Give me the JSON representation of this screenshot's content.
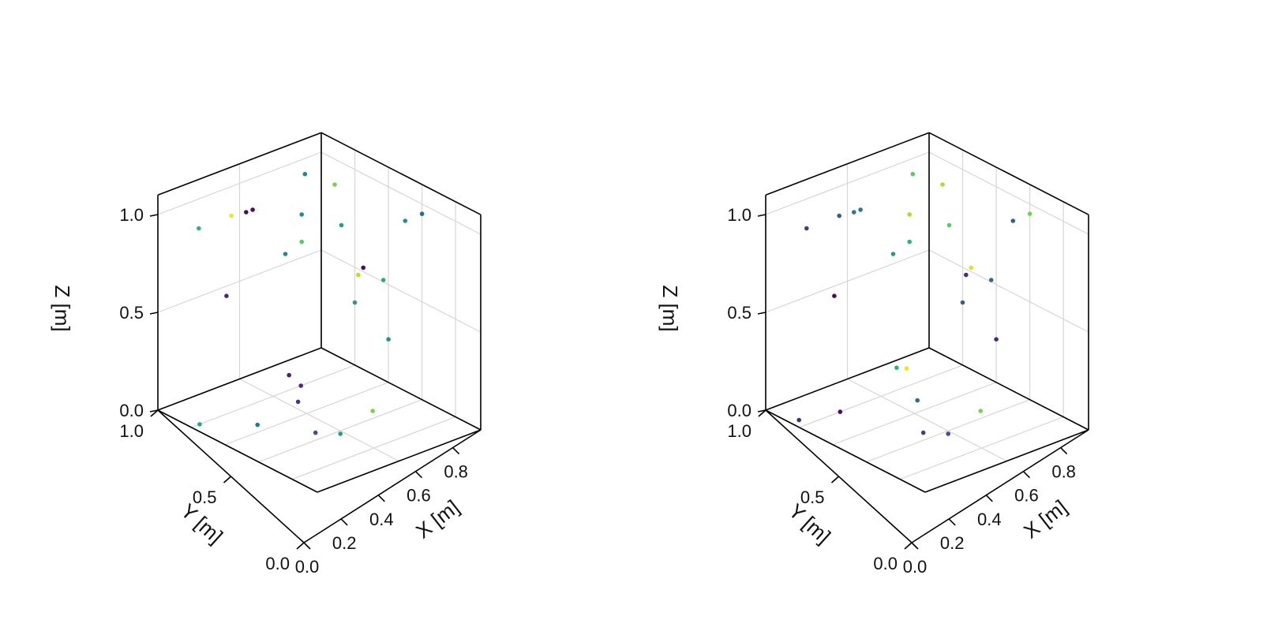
{
  "chart_data": [
    {
      "type": "scatter",
      "axes": {
        "x": {
          "label": "X [m]",
          "ticks": [
            "0.0",
            "0.2",
            "0.4",
            "0.6",
            "0.8"
          ],
          "range": [
            0,
            0.95
          ]
        },
        "y": {
          "label": "Y [m]",
          "ticks": [
            "0.0",
            "0.5",
            "1.0"
          ],
          "range": [
            0,
            1
          ]
        },
        "z": {
          "label": "Z [m]",
          "ticks": [
            "0.0",
            "0.5",
            "1.0"
          ],
          "range": [
            0,
            1
          ]
        }
      },
      "grid": true,
      "colormap": "viridis",
      "points": [
        {
          "x": 0.2,
          "y": 0.33,
          "z": 0.0,
          "c": 0.15
        },
        {
          "x": 0.1,
          "y": 0.3,
          "z": 0.0,
          "c": 0.12
        },
        {
          "x": 0.3,
          "y": 0.45,
          "z": 0.0,
          "c": 0.18
        },
        {
          "x": 0.55,
          "y": 0.25,
          "z": 0.0,
          "c": 0.8
        },
        {
          "x": 0.55,
          "y": 0.6,
          "z": 0.0,
          "c": 0.25
        },
        {
          "x": 0.35,
          "y": 0.75,
          "z": 0.0,
          "c": 0.4
        },
        {
          "x": 0.2,
          "y": 0.95,
          "z": 0.0,
          "c": 0.6
        },
        {
          "x": 0.62,
          "y": 0.52,
          "z": 0.0,
          "c": 0.55
        },
        {
          "x": 0.0,
          "y": 0.75,
          "z": 0.85,
          "c": 0.65
        },
        {
          "x": 0.0,
          "y": 0.55,
          "z": 0.85,
          "c": 0.98
        },
        {
          "x": 0.0,
          "y": 0.46,
          "z": 0.84,
          "c": 0.05
        },
        {
          "x": 0.0,
          "y": 0.42,
          "z": 0.84,
          "c": 0.05
        },
        {
          "x": 0.0,
          "y": 0.1,
          "z": 0.92,
          "c": 0.45
        },
        {
          "x": 0.0,
          "y": 0.12,
          "z": 0.72,
          "c": 0.5
        },
        {
          "x": 0.0,
          "y": 0.22,
          "z": 0.55,
          "c": 0.45
        },
        {
          "x": 0.0,
          "y": 0.12,
          "z": 0.58,
          "c": 0.75
        },
        {
          "x": 0.0,
          "y": 0.58,
          "z": 0.45,
          "c": 0.15
        },
        {
          "x": 0.08,
          "y": 0.0,
          "z": 0.87,
          "c": 0.8
        },
        {
          "x": 0.12,
          "y": 0.0,
          "z": 0.68,
          "c": 0.55
        },
        {
          "x": 0.5,
          "y": 0.0,
          "z": 0.87,
          "c": 0.5
        },
        {
          "x": 0.6,
          "y": 0.0,
          "z": 0.95,
          "c": 0.35
        },
        {
          "x": 0.25,
          "y": 0.0,
          "z": 0.52,
          "c": 0.05
        },
        {
          "x": 0.37,
          "y": 0.0,
          "z": 0.51,
          "c": 0.62
        },
        {
          "x": 0.22,
          "y": 0.0,
          "z": 0.47,
          "c": 0.9
        },
        {
          "x": 0.2,
          "y": 0.0,
          "z": 0.32,
          "c": 0.55
        },
        {
          "x": 0.4,
          "y": 0.0,
          "z": 0.22,
          "c": 0.5
        }
      ]
    },
    {
      "type": "scatter",
      "axes": {
        "x": {
          "label": "X [m]",
          "ticks": [
            "0.0",
            "0.2",
            "0.4",
            "0.6",
            "0.8"
          ],
          "range": [
            0,
            0.95
          ]
        },
        "y": {
          "label": "Y [m]",
          "ticks": [
            "0.0",
            "0.5",
            "1.0"
          ],
          "range": [
            0,
            1
          ]
        },
        "z": {
          "label": "Z [m]",
          "ticks": [
            "0.0",
            "0.5",
            "1.0"
          ],
          "range": [
            0,
            1
          ]
        }
      },
      "grid": true,
      "colormap": "viridis",
      "points": [
        {
          "x": 0.05,
          "y": 0.25,
          "z": 0.0,
          "c": 0.65
        },
        {
          "x": 0.08,
          "y": 0.22,
          "z": 0.0,
          "c": 0.98
        },
        {
          "x": 0.32,
          "y": 0.4,
          "z": 0.0,
          "c": 0.35
        },
        {
          "x": 0.55,
          "y": 0.25,
          "z": 0.0,
          "c": 0.8
        },
        {
          "x": 0.55,
          "y": 0.6,
          "z": 0.0,
          "c": 0.2
        },
        {
          "x": 0.2,
          "y": 0.75,
          "z": 0.0,
          "c": 0.05
        },
        {
          "x": 0.15,
          "y": 0.95,
          "z": 0.0,
          "c": 0.15
        },
        {
          "x": 0.62,
          "y": 0.52,
          "z": 0.0,
          "c": 0.25
        },
        {
          "x": 0.0,
          "y": 0.75,
          "z": 0.85,
          "c": 0.2
        },
        {
          "x": 0.0,
          "y": 0.55,
          "z": 0.85,
          "c": 0.3
        },
        {
          "x": 0.0,
          "y": 0.46,
          "z": 0.84,
          "c": 0.4
        },
        {
          "x": 0.0,
          "y": 0.42,
          "z": 0.84,
          "c": 0.4
        },
        {
          "x": 0.0,
          "y": 0.1,
          "z": 0.92,
          "c": 0.75
        },
        {
          "x": 0.0,
          "y": 0.12,
          "z": 0.72,
          "c": 0.88
        },
        {
          "x": 0.0,
          "y": 0.22,
          "z": 0.55,
          "c": 0.55
        },
        {
          "x": 0.0,
          "y": 0.12,
          "z": 0.58,
          "c": 0.65
        },
        {
          "x": 0.0,
          "y": 0.58,
          "z": 0.45,
          "c": 0.05
        },
        {
          "x": 0.08,
          "y": 0.0,
          "z": 0.87,
          "c": 0.88
        },
        {
          "x": 0.12,
          "y": 0.0,
          "z": 0.68,
          "c": 0.75
        },
        {
          "x": 0.5,
          "y": 0.0,
          "z": 0.87,
          "c": 0.3
        },
        {
          "x": 0.6,
          "y": 0.0,
          "z": 0.95,
          "c": 0.8
        },
        {
          "x": 0.25,
          "y": 0.0,
          "z": 0.52,
          "c": 0.95
        },
        {
          "x": 0.37,
          "y": 0.0,
          "z": 0.51,
          "c": 0.35
        },
        {
          "x": 0.22,
          "y": 0.0,
          "z": 0.47,
          "c": 0.15
        },
        {
          "x": 0.2,
          "y": 0.0,
          "z": 0.32,
          "c": 0.3
        },
        {
          "x": 0.4,
          "y": 0.0,
          "z": 0.22,
          "c": 0.15
        }
      ]
    }
  ]
}
